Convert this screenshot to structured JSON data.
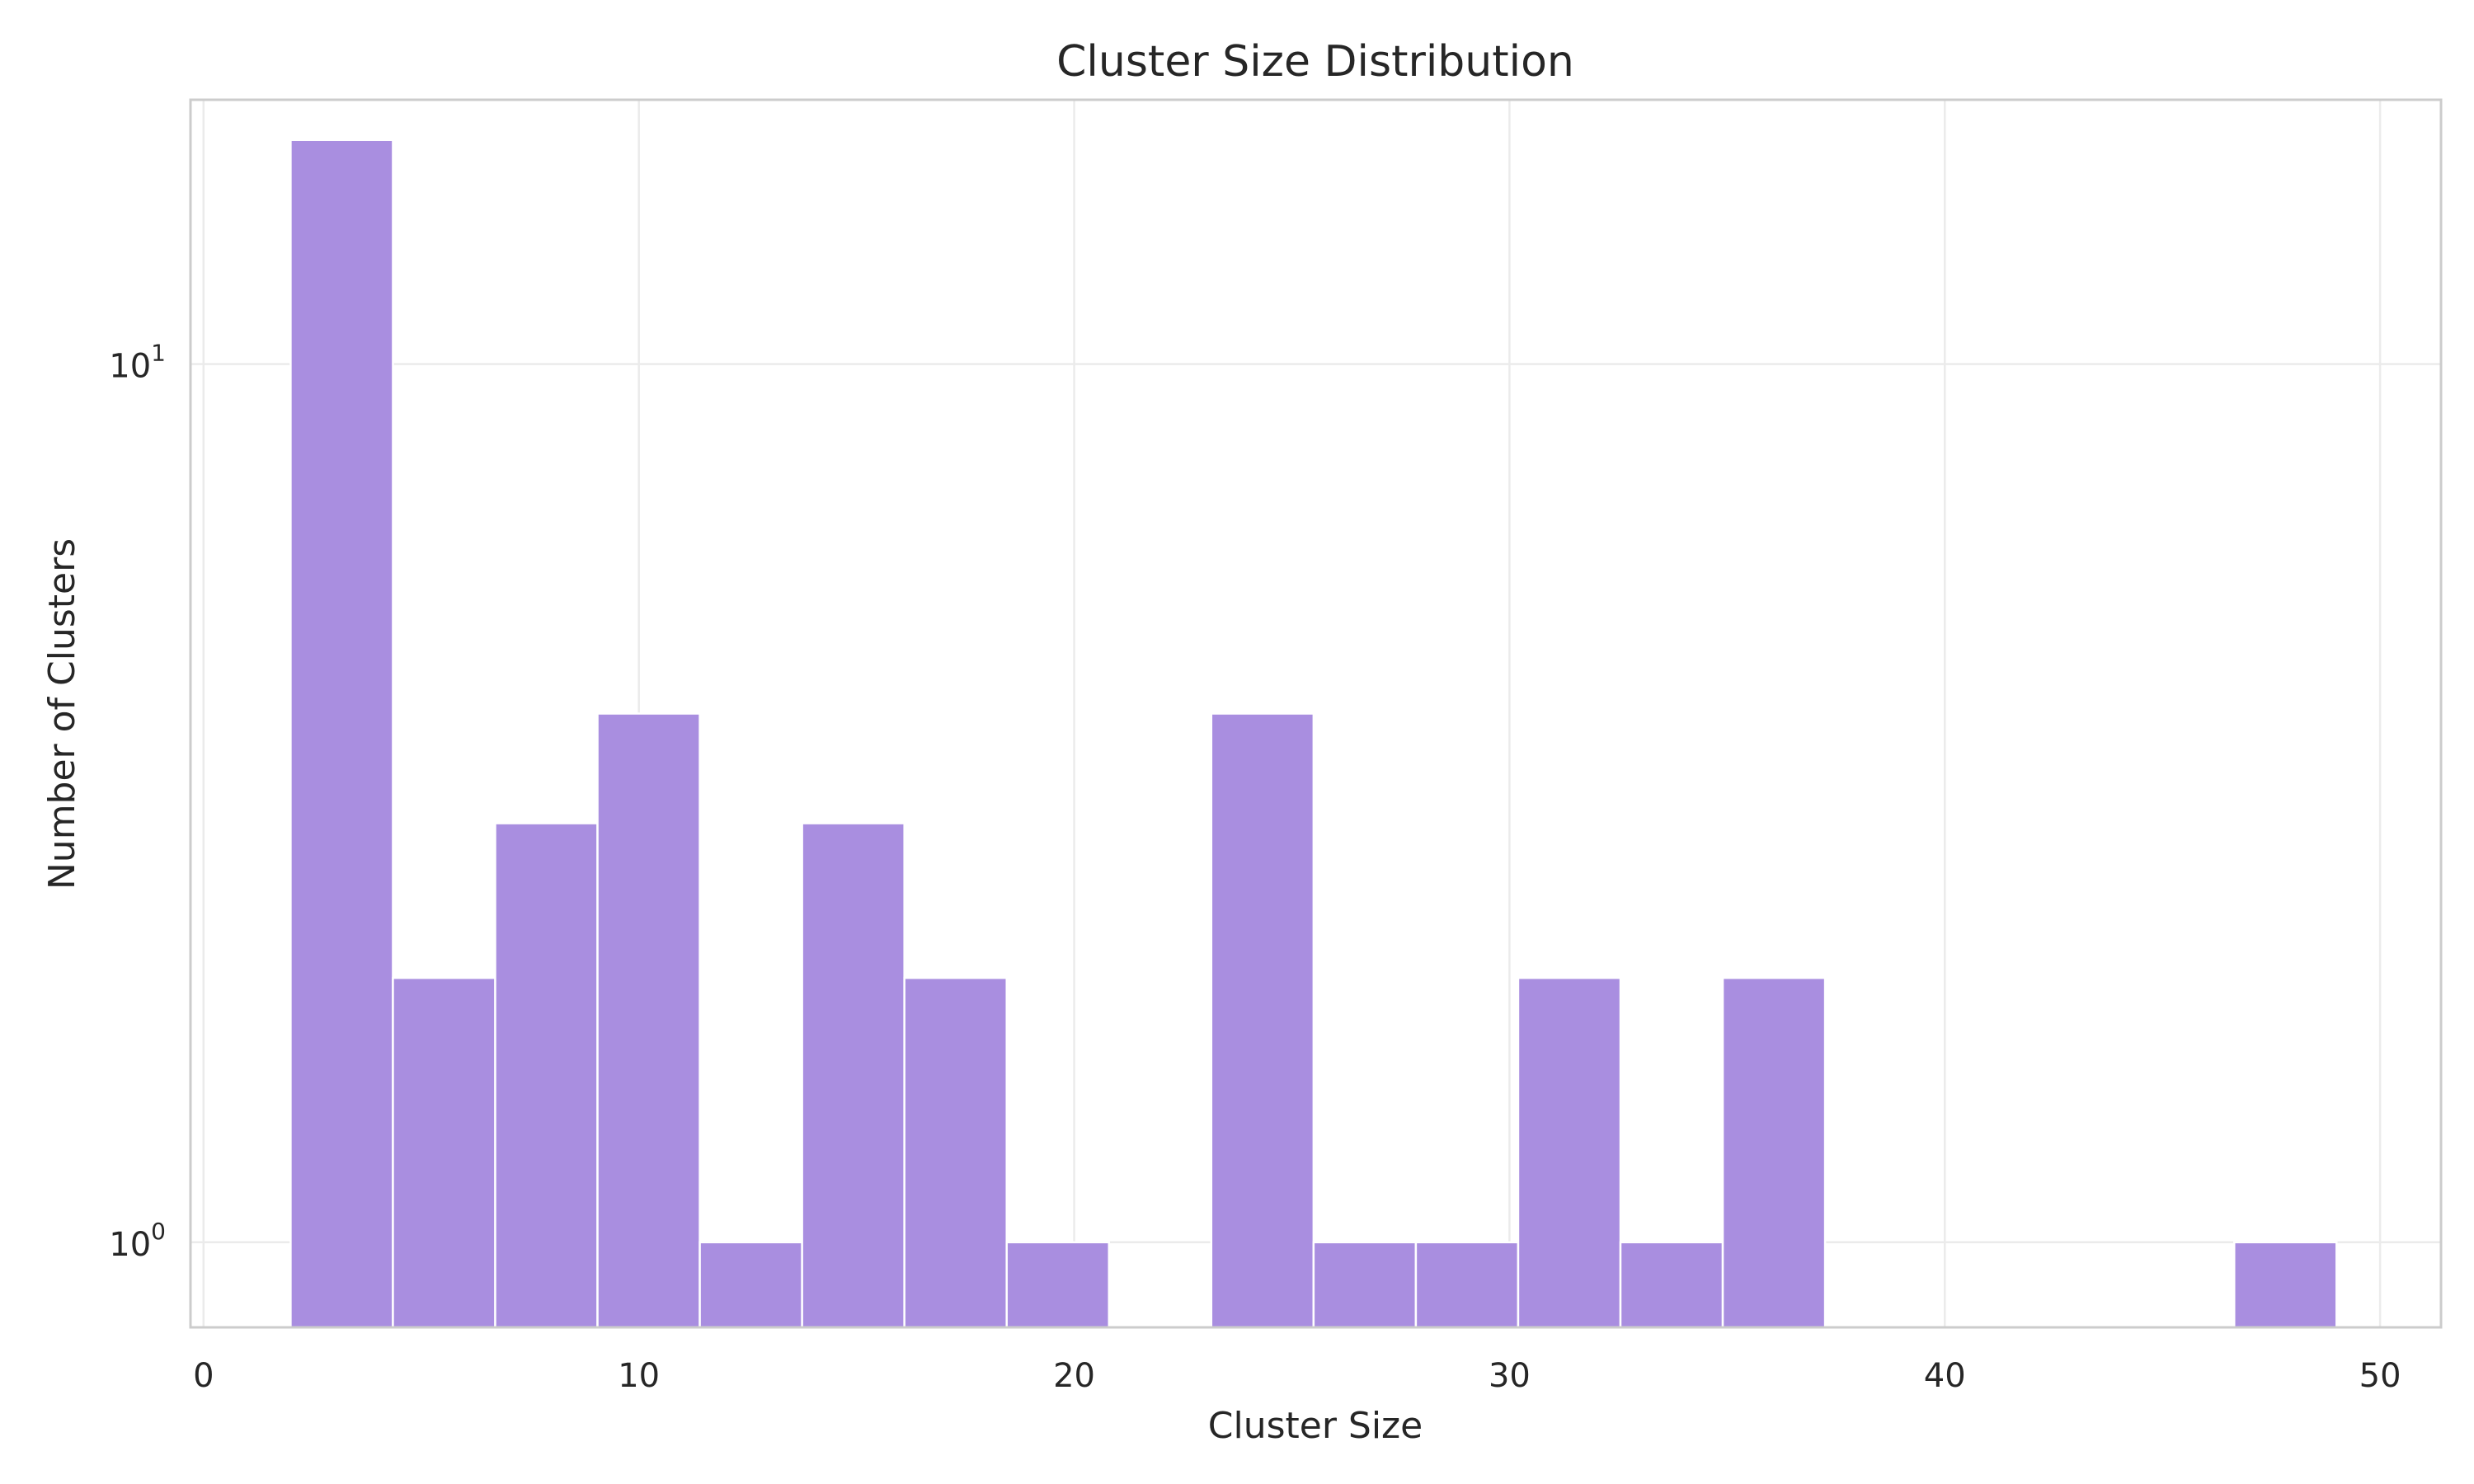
{
  "chart_data": {
    "type": "bar",
    "title": "Cluster Size Distribution",
    "xlabel": "Cluster Size",
    "ylabel": "Number of Clusters",
    "x_ticks": [
      0,
      10,
      20,
      30,
      40,
      50
    ],
    "y_ticks": [
      {
        "value": 1,
        "base": "10",
        "exp": "0"
      },
      {
        "value": 10,
        "base": "10",
        "exp": "1"
      }
    ],
    "xlim": [
      -0.3,
      51.4
    ],
    "ylim": [
      0.8,
      20
    ],
    "y_scale": "log",
    "grid": true,
    "bar_color": "#a98ee0",
    "bins": [
      {
        "x_start": 2.0,
        "x_end": 4.35,
        "count": 18
      },
      {
        "x_start": 4.35,
        "x_end": 6.7,
        "count": 2
      },
      {
        "x_start": 6.7,
        "x_end": 9.05,
        "count": 3
      },
      {
        "x_start": 9.05,
        "x_end": 11.4,
        "count": 4
      },
      {
        "x_start": 11.4,
        "x_end": 13.75,
        "count": 1
      },
      {
        "x_start": 13.75,
        "x_end": 16.1,
        "count": 3
      },
      {
        "x_start": 16.1,
        "x_end": 18.45,
        "count": 2
      },
      {
        "x_start": 18.45,
        "x_end": 20.8,
        "count": 1
      },
      {
        "x_start": 23.15,
        "x_end": 25.5,
        "count": 4
      },
      {
        "x_start": 25.5,
        "x_end": 27.85,
        "count": 1
      },
      {
        "x_start": 27.85,
        "x_end": 30.2,
        "count": 1
      },
      {
        "x_start": 30.2,
        "x_end": 32.55,
        "count": 2
      },
      {
        "x_start": 32.55,
        "x_end": 34.9,
        "count": 1
      },
      {
        "x_start": 34.9,
        "x_end": 37.25,
        "count": 2
      },
      {
        "x_start": 46.65,
        "x_end": 49.0,
        "count": 1
      }
    ]
  }
}
